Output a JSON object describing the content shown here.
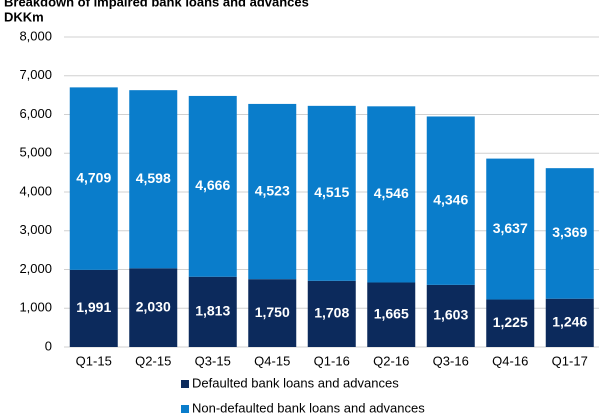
{
  "chart_data": {
    "type": "stacked-bar",
    "title": "Breakdown of impaired bank loans and advances",
    "subtitle": "DKKm",
    "categories": [
      "Q1-15",
      "Q2-15",
      "Q3-15",
      "Q4-15",
      "Q1-16",
      "Q2-16",
      "Q3-16",
      "Q4-16",
      "Q1-17"
    ],
    "series": [
      {
        "name": "Defaulted bank loans and advances",
        "color": "#0c2a5c",
        "values": [
          1991,
          2030,
          1813,
          1750,
          1708,
          1665,
          1603,
          1225,
          1246
        ],
        "value_labels": [
          "1,991",
          "2,030",
          "1,813",
          "1,750",
          "1,708",
          "1,665",
          "1,603",
          "1,225",
          "1,246"
        ]
      },
      {
        "name": "Non-defaulted bank loans and advances",
        "color": "#0a7dcb",
        "values": [
          4709,
          4598,
          4666,
          4523,
          4515,
          4546,
          4346,
          3637,
          3369
        ],
        "value_labels": [
          "4,709",
          "4,598",
          "4,666",
          "4,523",
          "4,515",
          "4,546",
          "4,346",
          "3,637",
          "3,369"
        ]
      }
    ],
    "ylim": [
      0,
      8000
    ],
    "yticks": [
      0,
      {
        "value": 1000,
        "label": "1,000"
      },
      {
        "value": 2000,
        "label": "2,000"
      },
      {
        "value": 3000,
        "label": "3,000"
      },
      {
        "value": 4000,
        "label": "4,000"
      },
      {
        "value": 5000,
        "label": "5,000"
      },
      {
        "value": 6000,
        "label": "6,000"
      },
      {
        "value": 7000,
        "label": "7,000"
      },
      {
        "value": 8000,
        "label": "8,000"
      }
    ],
    "grid": true
  }
}
